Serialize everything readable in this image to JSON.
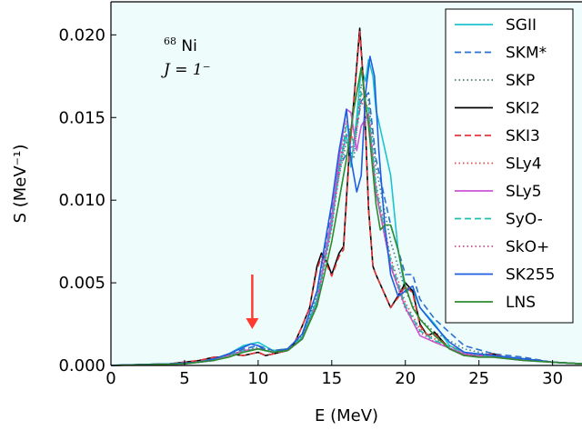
{
  "chart_data": {
    "type": "line",
    "xlabel": "E (MeV)",
    "ylabel": "S (MeV⁻¹)",
    "xlim": [
      0,
      32
    ],
    "ylim": [
      0,
      0.022
    ],
    "xticks": [
      0,
      5,
      10,
      15,
      20,
      25,
      30
    ],
    "yticks": [
      0.0,
      0.005,
      0.01,
      0.015,
      0.02
    ],
    "ytick_labels": [
      "0.000",
      "0.005",
      "0.010",
      "0.015",
      "0.020"
    ],
    "background": "#eefcfb",
    "annotation": {
      "nucleus": "Ni",
      "mass": "68",
      "J": "J = 1⁻"
    },
    "arrow_at": {
      "x": 9.6,
      "y_from": 0.0055,
      "y_to": 0.0022,
      "color": "#ff3b30"
    },
    "legend_position": "top-right",
    "series": [
      {
        "name": "SGII",
        "color": "#1cc3cf",
        "dash": "solid",
        "x": [
          0,
          4,
          6,
          7,
          8,
          9,
          10,
          11,
          12,
          13,
          14,
          15,
          15.5,
          16,
          16.3,
          16.7,
          17,
          17.3,
          17.5,
          17.8,
          18,
          18.5,
          19,
          19.5,
          20,
          20.5,
          21,
          22,
          23,
          24,
          25,
          26,
          27,
          28,
          30,
          32
        ],
        "y": [
          0,
          0.0001,
          0.0002,
          0.0004,
          0.0007,
          0.0012,
          0.0014,
          0.0009,
          0.001,
          0.0017,
          0.004,
          0.0085,
          0.012,
          0.014,
          0.012,
          0.015,
          0.018,
          0.0172,
          0.0185,
          0.0175,
          0.0155,
          0.0135,
          0.0115,
          0.007,
          0.0045,
          0.0046,
          0.0035,
          0.0025,
          0.0012,
          0.0008,
          0.0006,
          0.0006,
          0.0004,
          0.0004,
          0.0002,
          0.0001
        ]
      },
      {
        "name": "SKM*",
        "color": "#2c6fce",
        "dash": "dashed",
        "x": [
          0,
          5,
          7,
          8,
          9,
          10,
          11,
          12,
          13,
          14,
          15,
          15.5,
          16,
          16.5,
          17,
          17.5,
          18,
          19,
          20,
          20.5,
          21,
          22,
          24,
          26,
          28,
          30,
          32
        ],
        "y": [
          0,
          0.0001,
          0.0003,
          0.0006,
          0.001,
          0.0012,
          0.0009,
          0.001,
          0.0019,
          0.0045,
          0.0095,
          0.012,
          0.0128,
          0.0135,
          0.016,
          0.0165,
          0.0125,
          0.0085,
          0.0055,
          0.0055,
          0.004,
          0.0028,
          0.0012,
          0.0007,
          0.0005,
          0.0002,
          0.0001
        ]
      },
      {
        "name": "SKP",
        "color": "#4a7a7a",
        "dash": "dotted",
        "x": [
          0,
          5,
          7,
          8,
          9,
          10,
          11,
          12,
          13,
          14,
          15,
          15.5,
          16,
          16.5,
          17,
          17.5,
          18,
          19,
          20,
          21,
          22,
          24,
          26,
          28,
          30,
          32
        ],
        "y": [
          0,
          0.0001,
          0.0003,
          0.0006,
          0.0009,
          0.0011,
          0.0009,
          0.001,
          0.0018,
          0.0042,
          0.009,
          0.0115,
          0.0135,
          0.0125,
          0.017,
          0.016,
          0.012,
          0.0075,
          0.0045,
          0.0028,
          0.002,
          0.001,
          0.0006,
          0.0004,
          0.0002,
          0.0001
        ]
      },
      {
        "name": "SKI2",
        "color": "#000000",
        "dash": "solid",
        "x": [
          0,
          4,
          6,
          7,
          7.5,
          8,
          9,
          10,
          10.5,
          11,
          12,
          12.5,
          13,
          13.5,
          14,
          14.3,
          14.7,
          15,
          15.5,
          15.8,
          16.2,
          16.5,
          16.9,
          17.2,
          17.5,
          17.8,
          18,
          18.5,
          19,
          19.5,
          20,
          20.5,
          21,
          21.5,
          22,
          23,
          24,
          25,
          26,
          27,
          28,
          30,
          32
        ],
        "y": [
          0,
          0.0001,
          0.0003,
          0.0005,
          0.0005,
          0.0007,
          0.0006,
          0.0008,
          0.0006,
          0.0007,
          0.0009,
          0.0014,
          0.0024,
          0.0035,
          0.006,
          0.0068,
          0.0062,
          0.0055,
          0.0068,
          0.0072,
          0.013,
          0.016,
          0.0204,
          0.0165,
          0.0095,
          0.006,
          0.0055,
          0.0045,
          0.0035,
          0.0042,
          0.005,
          0.0045,
          0.0025,
          0.0018,
          0.002,
          0.001,
          0.0006,
          0.0006,
          0.0007,
          0.0004,
          0.0004,
          0.0002,
          0.0001
        ]
      },
      {
        "name": "SKI3",
        "color": "#e8363b",
        "dash": "dashed",
        "x": [
          0,
          4,
          6,
          7,
          7.5,
          8,
          9,
          10,
          10.5,
          11,
          12,
          12.5,
          13,
          13.5,
          14,
          14.3,
          14.7,
          15,
          15.5,
          15.8,
          16.2,
          16.5,
          16.9,
          17.2,
          17.5,
          17.8,
          18,
          18.5,
          19,
          19.5,
          20,
          20.5,
          21,
          21.5,
          22,
          23,
          24,
          25,
          26,
          27,
          28,
          30,
          32
        ],
        "y": [
          0,
          0.0001,
          0.0003,
          0.0005,
          0.0005,
          0.0007,
          0.0006,
          0.0008,
          0.0006,
          0.0007,
          0.0009,
          0.0014,
          0.0024,
          0.0035,
          0.0058,
          0.0066,
          0.006,
          0.0054,
          0.0066,
          0.007,
          0.0128,
          0.0158,
          0.0202,
          0.0163,
          0.0094,
          0.006,
          0.0055,
          0.0045,
          0.0035,
          0.0041,
          0.0048,
          0.0044,
          0.0024,
          0.0018,
          0.0019,
          0.001,
          0.0006,
          0.0006,
          0.0007,
          0.0004,
          0.0004,
          0.0002,
          0.0001
        ]
      },
      {
        "name": "SLy4",
        "color": "#d94a4a",
        "dash": "dotted",
        "x": [
          0,
          5,
          7,
          8,
          9,
          10,
          11,
          12,
          13,
          14,
          15,
          15.5,
          16,
          16.5,
          17,
          17.5,
          18,
          19,
          20,
          21,
          22,
          24,
          26,
          28,
          30,
          32
        ],
        "y": [
          0,
          0.0001,
          0.0003,
          0.0006,
          0.0009,
          0.001,
          0.0008,
          0.0009,
          0.0016,
          0.0038,
          0.0088,
          0.012,
          0.0148,
          0.0135,
          0.0165,
          0.0155,
          0.011,
          0.0065,
          0.0038,
          0.0022,
          0.0016,
          0.0008,
          0.0005,
          0.0004,
          0.0002,
          0.0001
        ]
      },
      {
        "name": "SLy5",
        "color": "#cc55d6",
        "dash": "solid",
        "x": [
          0,
          5,
          7,
          8,
          9,
          10,
          11,
          12,
          13,
          14,
          15,
          15.5,
          16,
          16.3,
          16.7,
          17,
          17.5,
          18,
          19,
          20,
          21,
          22,
          24,
          26,
          28,
          30,
          32
        ],
        "y": [
          0,
          0.0001,
          0.0003,
          0.0006,
          0.0009,
          0.001,
          0.0008,
          0.0009,
          0.0016,
          0.0038,
          0.009,
          0.0125,
          0.0155,
          0.0153,
          0.013,
          0.0145,
          0.0152,
          0.0105,
          0.006,
          0.0035,
          0.0018,
          0.0014,
          0.0007,
          0.0005,
          0.0003,
          0.0002,
          0.0001
        ]
      },
      {
        "name": "SyO-",
        "color": "#1fbfae",
        "dash": "dashed",
        "x": [
          0,
          5,
          7,
          8,
          9,
          10,
          11,
          12,
          13,
          14,
          15,
          15.5,
          16,
          16.5,
          17,
          17.5,
          18,
          19,
          20,
          21,
          22,
          24,
          26,
          28,
          30,
          32
        ],
        "y": [
          0,
          0.0001,
          0.0003,
          0.0006,
          0.0009,
          0.001,
          0.0008,
          0.0009,
          0.0016,
          0.0038,
          0.0085,
          0.0118,
          0.0145,
          0.0135,
          0.0165,
          0.0155,
          0.0108,
          0.0063,
          0.0036,
          0.0021,
          0.0015,
          0.0008,
          0.0005,
          0.0004,
          0.0002,
          0.0001
        ]
      },
      {
        "name": "SkO+",
        "color": "#c0508c",
        "dash": "dotted",
        "x": [
          0,
          5,
          7,
          8,
          9,
          10,
          11,
          12,
          13,
          14,
          15,
          15.5,
          16,
          16.5,
          17,
          17.5,
          18,
          19,
          20,
          21,
          22,
          24,
          26,
          28,
          30,
          32
        ],
        "y": [
          0,
          0.0001,
          0.0003,
          0.0006,
          0.0009,
          0.001,
          0.0008,
          0.0009,
          0.0016,
          0.0037,
          0.0083,
          0.0115,
          0.014,
          0.013,
          0.016,
          0.015,
          0.0105,
          0.006,
          0.0034,
          0.002,
          0.0014,
          0.0007,
          0.0005,
          0.0004,
          0.0002,
          0.0001
        ]
      },
      {
        "name": "SK255",
        "color": "#1f5ee0",
        "dash": "solid",
        "x": [
          0,
          4,
          6,
          7,
          8,
          9,
          9.5,
          10,
          10.5,
          11,
          12,
          13,
          14,
          14.5,
          15,
          15.5,
          16,
          16.3,
          16.7,
          17,
          17.3,
          17.6,
          17.9,
          18.2,
          18.6,
          19,
          19.5,
          20,
          20.5,
          21,
          22,
          23,
          24,
          26,
          28,
          30,
          32
        ],
        "y": [
          0,
          0.0001,
          0.0002,
          0.0004,
          0.0007,
          0.0011,
          0.0013,
          0.0012,
          0.0009,
          0.0008,
          0.001,
          0.0019,
          0.0045,
          0.0072,
          0.0098,
          0.013,
          0.0155,
          0.0125,
          0.0105,
          0.0115,
          0.0165,
          0.0187,
          0.0175,
          0.013,
          0.0085,
          0.0055,
          0.0042,
          0.0045,
          0.0048,
          0.0035,
          0.0024,
          0.0014,
          0.0008,
          0.0006,
          0.0004,
          0.0002,
          0.0001
        ]
      },
      {
        "name": "LNS",
        "color": "#2e8b2e",
        "dash": "solid",
        "x": [
          0,
          5,
          7,
          8,
          9,
          10,
          11,
          12,
          13,
          14,
          14.5,
          15,
          15.5,
          16,
          16.5,
          17,
          17.5,
          18,
          18.3,
          18.6,
          19,
          19.5,
          20,
          20.5,
          21,
          22,
          23,
          24,
          25,
          26,
          27,
          28,
          30,
          32
        ],
        "y": [
          0,
          0.0001,
          0.0003,
          0.0005,
          0.0008,
          0.001,
          0.0008,
          0.0009,
          0.0016,
          0.0036,
          0.0055,
          0.0075,
          0.01,
          0.0125,
          0.0155,
          0.018,
          0.0145,
          0.0098,
          0.0082,
          0.0085,
          0.0085,
          0.007,
          0.0048,
          0.0035,
          0.0028,
          0.0018,
          0.001,
          0.0006,
          0.0005,
          0.0005,
          0.0004,
          0.0003,
          0.0002,
          0.0001
        ]
      }
    ]
  }
}
